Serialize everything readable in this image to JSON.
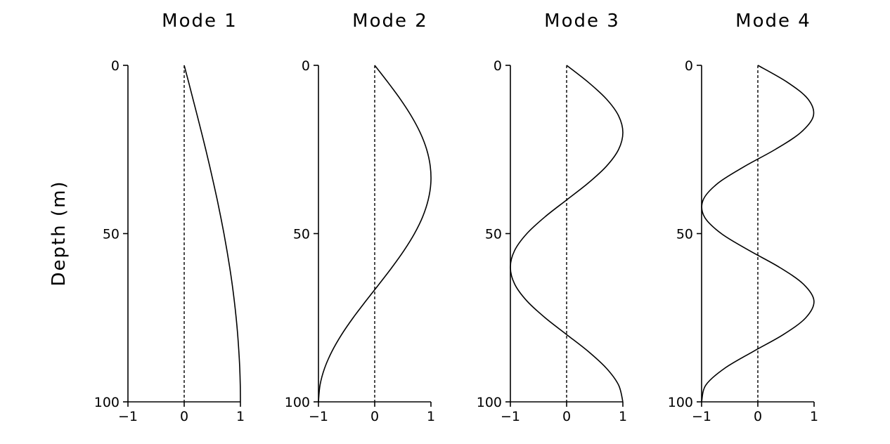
{
  "chart_data": [
    {
      "type": "line",
      "title": "Mode 1",
      "ylabel": "Depth (m)",
      "xlim": [
        -1,
        1
      ],
      "ylim": [
        0,
        100
      ],
      "y_inverted": true,
      "xticks": [
        "−1",
        "0",
        "1"
      ],
      "yticks": [
        "0",
        "50",
        "100"
      ],
      "reference_line": {
        "style": "dashed",
        "x": 0
      },
      "series": [
        {
          "x": [
            0,
            0.079,
            0.156,
            0.233,
            0.309,
            0.383,
            0.454,
            0.522,
            0.588,
            0.649,
            0.707,
            0.76,
            0.809,
            0.853,
            0.891,
            0.924,
            0.951,
            0.972,
            0.988,
            0.997,
            1.0
          ],
          "y": [
            0,
            5,
            10,
            15,
            20,
            25,
            30,
            35,
            40,
            45,
            50,
            55,
            60,
            65,
            70,
            75,
            80,
            85,
            90,
            95,
            100
          ]
        }
      ]
    },
    {
      "type": "line",
      "title": "Mode  2",
      "xlim": [
        -1,
        1
      ],
      "ylim": [
        0,
        100
      ],
      "y_inverted": true,
      "xticks": [
        "−1",
        "0",
        "1"
      ],
      "yticks": [
        "0",
        "50",
        "100"
      ],
      "reference_line": {
        "style": "dashed",
        "x": 0
      },
      "series": [
        {
          "x": [
            0,
            0.233,
            0.454,
            0.649,
            0.809,
            0.924,
            0.988,
            0.998,
            0.951,
            0.853,
            0.707,
            0.522,
            0.309,
            0.079,
            -0.156,
            -0.383,
            -0.588,
            -0.76,
            -0.891,
            -0.972,
            -1.0
          ],
          "y": [
            0,
            5,
            10,
            15,
            20,
            25,
            30,
            35,
            40,
            45,
            50,
            55,
            60,
            65,
            70,
            75,
            80,
            85,
            90,
            95,
            100
          ]
        }
      ]
    },
    {
      "type": "line",
      "title": "Mode 3",
      "xlim": [
        -1,
        1
      ],
      "ylim": [
        0,
        100
      ],
      "y_inverted": true,
      "xticks": [
        "−1",
        "0",
        "1"
      ],
      "yticks": [
        "0",
        "50",
        "100"
      ],
      "reference_line": {
        "style": "dashed",
        "x": 0
      },
      "series": [
        {
          "x": [
            0,
            0.383,
            0.707,
            0.924,
            1.0,
            0.924,
            0.707,
            0.383,
            0,
            -0.383,
            -0.707,
            -0.924,
            -1.0,
            -0.924,
            -0.707,
            -0.383,
            0,
            0.383,
            0.707,
            0.924,
            1.0
          ],
          "y": [
            0,
            5,
            10,
            15,
            20,
            25,
            30,
            35,
            40,
            45,
            50,
            55,
            60,
            65,
            70,
            75,
            80,
            85,
            90,
            95,
            100
          ]
        }
      ]
    },
    {
      "type": "line",
      "title": "Mode  4",
      "xlim": [
        -1,
        1
      ],
      "ylim": [
        0,
        100
      ],
      "y_inverted": true,
      "xticks": [
        "−1",
        "0",
        "1"
      ],
      "yticks": [
        "0",
        "50",
        "100"
      ],
      "reference_line": {
        "style": "dashed",
        "x": 0
      },
      "series": [
        {
          "x": [
            0,
            0.522,
            0.891,
            0.988,
            0.76,
            0.309,
            -0.233,
            -0.707,
            -0.972,
            -0.951,
            -0.649,
            -0.156,
            0.383,
            0.809,
            0.998,
            0.853,
            0.454,
            -0.079,
            -0.588,
            -0.924,
            -1.0
          ],
          "y": [
            0,
            5,
            10,
            15,
            20,
            25,
            30,
            35,
            40,
            45,
            50,
            55,
            60,
            65,
            70,
            75,
            80,
            85,
            90,
            95,
            100
          ]
        }
      ]
    }
  ]
}
